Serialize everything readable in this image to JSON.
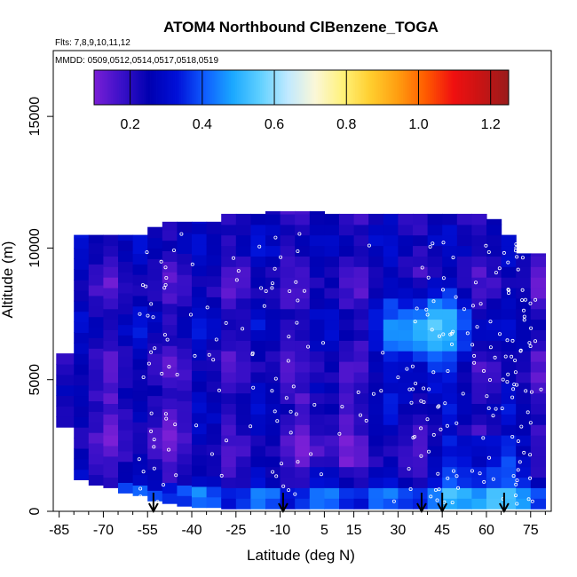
{
  "chart_data": {
    "type": "heatmap",
    "title": "ATOM4 Northbound ClBenzene_TOGA",
    "subtitle_flights": "Flts: 7,8,9,10,11,12",
    "subtitle_dates": "MMDD: 0509,0512,0514,0517,0518,0519",
    "xlabel": "Latitude (deg N)",
    "ylabel": "Altitude (m)",
    "xlim": [
      -87,
      82
    ],
    "ylim": [
      0,
      17500
    ],
    "x_ticks": [
      -85,
      -70,
      -55,
      -40,
      -25,
      -10,
      5,
      15,
      30,
      45,
      60,
      75
    ],
    "y_ticks": [
      0,
      5000,
      10000,
      15000
    ],
    "colorbar": {
      "range": [
        0.1,
        1.25
      ],
      "ticks": [
        0.2,
        0.4,
        0.6,
        0.8,
        1.0,
        1.2
      ],
      "tick_labels": [
        "0.2",
        "0.4",
        "0.6",
        "0.8",
        "1.0",
        "1.2"
      ],
      "colors": [
        "#7a1fd6",
        "#3a10c8",
        "#0000b0",
        "#0010d8",
        "#0f5cff",
        "#1aa7ff",
        "#5fd0ff",
        "#bfe9ff",
        "#fbf7d8",
        "#fff27a",
        "#ffce2e",
        "#ff9d10",
        "#ff5a00",
        "#f01010",
        "#c81414",
        "#9a1c1c"
      ]
    },
    "arrows_lat": [
      -53,
      -9,
      38,
      45,
      66
    ],
    "curtain": {
      "lat_bins": [
        -86,
        -80,
        -75,
        -70,
        -65,
        -60,
        -55,
        -50,
        -45,
        -40,
        -35,
        -30,
        -25,
        -20,
        -15,
        -10,
        -5,
        0,
        5,
        10,
        15,
        20,
        25,
        30,
        35,
        40,
        45,
        50,
        55,
        60,
        65,
        70,
        75,
        80
      ],
      "top_alt": [
        6000,
        10500,
        10500,
        10500,
        10500,
        10500,
        10800,
        11000,
        11000,
        11000,
        11000,
        11300,
        11300,
        11300,
        11400,
        11400,
        11400,
        11400,
        11300,
        11300,
        11300,
        11300,
        11300,
        11300,
        11300,
        11300,
        11300,
        11300,
        11300,
        11100,
        10500,
        9800,
        9800,
        9500
      ],
      "bottom_alt": [
        3200,
        1200,
        1000,
        900,
        700,
        600,
        400,
        300,
        200,
        150,
        150,
        100,
        100,
        100,
        100,
        100,
        100,
        100,
        100,
        100,
        100,
        100,
        100,
        100,
        100,
        100,
        100,
        100,
        100,
        100,
        100,
        100,
        100,
        100
      ]
    }
  }
}
